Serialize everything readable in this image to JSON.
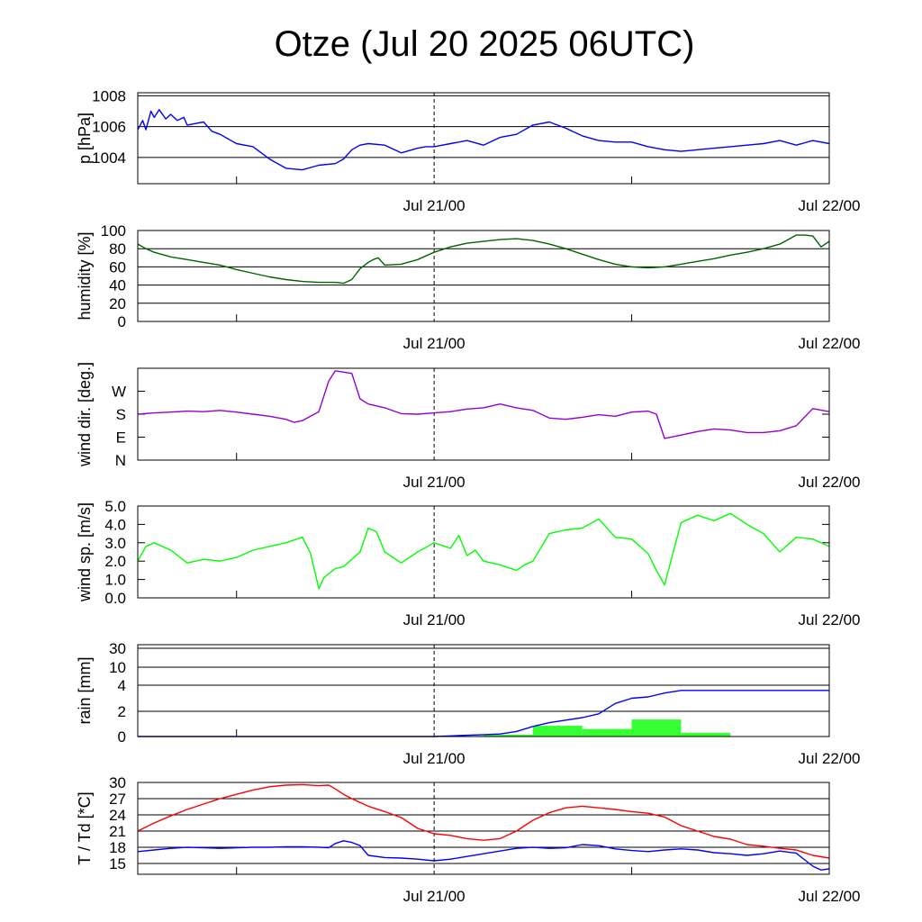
{
  "title": "Otze (Jul 20 2025 06UTC)",
  "colors": {
    "pressure": "#0000ff",
    "humidity": "#006400",
    "wind_dir": "#9400d3",
    "wind_speed": "#00ff00",
    "rain_bar": "#33ff33",
    "rain_cum": "#0000ff",
    "temperature": "#ff0000",
    "dewpoint": "#0000ff",
    "grid": "#000000"
  },
  "chart_data": [
    {
      "id": "pressure",
      "type": "line",
      "ylabel": "p [hPa]",
      "ylim": [
        1002.3,
        1008.2
      ],
      "yticks": [
        {
          "v": 1004,
          "label": "1004"
        },
        {
          "v": 1006,
          "label": "1006"
        },
        {
          "v": 1008,
          "label": "1008"
        }
      ],
      "grid": true,
      "xlim": [
        0,
        42
      ],
      "x_ticklabels": [
        {
          "x": 18,
          "label": "Jul 21/00"
        },
        {
          "x": 42,
          "label": "Jul 22/00"
        }
      ],
      "series": [
        {
          "color_key": "pressure",
          "x": [
            0,
            0.3,
            0.5,
            0.8,
            1,
            1.3,
            1.7,
            2,
            2.4,
            2.8,
            3,
            3.5,
            4,
            4.5,
            5,
            5.5,
            6,
            7,
            8,
            9,
            10,
            11,
            12,
            12.5,
            13,
            13.5,
            14,
            15,
            16,
            17,
            17.5,
            18,
            19,
            20,
            21,
            22,
            23,
            24,
            25,
            26,
            27,
            28,
            29,
            30,
            31,
            32,
            33,
            34,
            35,
            36,
            37,
            38,
            39,
            40,
            41,
            42
          ],
          "y": [
            1005.8,
            1006.4,
            1005.8,
            1007,
            1006.6,
            1007.1,
            1006.5,
            1006.8,
            1006.4,
            1006.6,
            1006.1,
            1006.2,
            1006.3,
            1005.7,
            1005.5,
            1005.2,
            1004.9,
            1004.7,
            1003.9,
            1003.3,
            1003.2,
            1003.5,
            1003.6,
            1003.9,
            1004.5,
            1004.8,
            1004.9,
            1004.8,
            1004.3,
            1004.6,
            1004.7,
            1004.7,
            1004.9,
            1005.1,
            1004.8,
            1005.3,
            1005.5,
            1006.1,
            1006.3,
            1005.9,
            1005.4,
            1005.1,
            1005,
            1005,
            1004.7,
            1004.5,
            1004.4,
            1004.5,
            1004.6,
            1004.7,
            1004.8,
            1004.9,
            1005.1,
            1004.8,
            1005.1,
            1004.9
          ]
        }
      ]
    },
    {
      "id": "humidity",
      "type": "line",
      "ylabel": "humidity [%]",
      "ylim": [
        0,
        100
      ],
      "yticks": [
        {
          "v": 0,
          "label": "0"
        },
        {
          "v": 20,
          "label": "20"
        },
        {
          "v": 40,
          "label": "40"
        },
        {
          "v": 60,
          "label": "60"
        },
        {
          "v": 80,
          "label": "80"
        },
        {
          "v": 100,
          "label": "100"
        }
      ],
      "grid": true,
      "xlim": [
        0,
        42
      ],
      "x_ticklabels": [
        {
          "x": 18,
          "label": "Jul 21/00"
        },
        {
          "x": 42,
          "label": "Jul 22/00"
        }
      ],
      "series": [
        {
          "color_key": "humidity",
          "x": [
            0,
            0.5,
            1,
            2,
            3,
            4,
            5,
            6,
            7,
            8,
            9,
            10,
            11,
            11.5,
            12,
            12.5,
            13,
            13.5,
            14,
            14.3,
            14.6,
            15,
            16,
            17,
            18,
            19,
            20,
            21,
            22,
            23,
            24,
            25,
            26,
            27,
            28,
            29,
            30,
            31,
            32,
            33,
            34,
            35,
            36,
            37,
            38,
            39,
            39.5,
            40,
            40.5,
            41,
            41.5,
            42
          ],
          "y": [
            85,
            80,
            76,
            71,
            68,
            65,
            62,
            57,
            53,
            49,
            46,
            44,
            43,
            43,
            43,
            42,
            46,
            58,
            65,
            68,
            70,
            62,
            63,
            68,
            76,
            82,
            86,
            88,
            90,
            91,
            89,
            85,
            80,
            74,
            68,
            63,
            60,
            59,
            60,
            63,
            66,
            69,
            73,
            76,
            80,
            85,
            90,
            95,
            95,
            94,
            82,
            88
          ]
        }
      ]
    },
    {
      "id": "wind_dir",
      "type": "line",
      "ylabel": "wind dir. [deg.]",
      "ylim": [
        0,
        360
      ],
      "yticks": [
        {
          "v": 0,
          "label": "N"
        },
        {
          "v": 90,
          "label": "E"
        },
        {
          "v": 180,
          "label": "S"
        },
        {
          "v": 270,
          "label": "W"
        }
      ],
      "grid": false,
      "xlim": [
        0,
        42
      ],
      "x_ticklabels": [
        {
          "x": 18,
          "label": "Jul 21/00"
        },
        {
          "x": 42,
          "label": "Jul 22/00"
        }
      ],
      "series": [
        {
          "color_key": "wind_dir",
          "x": [
            0,
            1,
            2,
            3,
            4,
            5,
            6,
            7,
            8,
            9,
            9.5,
            10,
            11,
            11.3,
            11.6,
            12,
            12.5,
            13,
            13.5,
            14,
            15,
            16,
            17,
            18,
            19,
            20,
            21,
            22,
            23,
            24,
            25,
            26,
            27,
            28,
            29,
            30,
            31,
            31.5,
            32,
            33,
            34,
            35,
            36,
            37,
            38,
            39,
            40,
            41,
            42
          ],
          "y": [
            180,
            185,
            188,
            192,
            190,
            195,
            188,
            180,
            172,
            160,
            148,
            155,
            190,
            250,
            310,
            350,
            345,
            340,
            240,
            220,
            205,
            182,
            180,
            185,
            190,
            200,
            205,
            220,
            205,
            195,
            165,
            160,
            168,
            178,
            172,
            188,
            192,
            180,
            85,
            98,
            112,
            122,
            118,
            108,
            108,
            115,
            135,
            202,
            190
          ]
        }
      ]
    },
    {
      "id": "wind_speed",
      "type": "line",
      "ylabel": "wind sp. [m/s]",
      "ylim": [
        0,
        5
      ],
      "yticks": [
        {
          "v": 0,
          "label": "0.0"
        },
        {
          "v": 1,
          "label": "1.0"
        },
        {
          "v": 2,
          "label": "2.0"
        },
        {
          "v": 3,
          "label": "3.0"
        },
        {
          "v": 4,
          "label": "4.0"
        },
        {
          "v": 5,
          "label": "5.0"
        }
      ],
      "grid": false,
      "xlim": [
        0,
        42
      ],
      "x_ticklabels": [
        {
          "x": 18,
          "label": "Jul 21/00"
        },
        {
          "x": 42,
          "label": "Jul 22/00"
        }
      ],
      "series": [
        {
          "color_key": "wind_speed",
          "x": [
            0,
            0.5,
            1,
            2,
            3,
            4,
            5,
            6,
            7,
            8,
            9,
            10,
            10.5,
            11,
            11.3,
            12,
            12.5,
            13,
            13.5,
            14,
            14.5,
            15,
            16,
            17,
            18,
            19,
            19.5,
            20,
            20.5,
            21,
            22,
            23,
            23.5,
            24,
            25,
            26,
            27,
            28,
            29,
            30,
            31,
            31.5,
            32,
            33,
            34,
            35,
            36,
            37,
            38,
            39,
            40,
            41,
            42
          ],
          "y": [
            2.0,
            2.8,
            3.0,
            2.6,
            1.9,
            2.1,
            2.0,
            2.2,
            2.6,
            2.8,
            3.0,
            3.3,
            2.4,
            0.5,
            1.1,
            1.6,
            1.7,
            2.1,
            2.5,
            3.8,
            3.6,
            2.5,
            1.9,
            2.5,
            3.0,
            2.7,
            3.4,
            2.3,
            2.6,
            2.0,
            1.8,
            1.5,
            1.8,
            2.0,
            3.5,
            3.7,
            3.8,
            4.3,
            3.3,
            3.2,
            2.4,
            1.5,
            0.7,
            4.1,
            4.5,
            4.2,
            4.6,
            4.0,
            3.5,
            2.5,
            3.3,
            3.2,
            2.8
          ]
        }
      ]
    },
    {
      "id": "rain",
      "type": "bar+line",
      "ylabel": "rain [mm]",
      "yscale": "custom",
      "yticks": [
        {
          "v": 0,
          "label": "0"
        },
        {
          "v": 2,
          "label": "2"
        },
        {
          "v": 4,
          "label": "4"
        },
        {
          "v": 10,
          "label": "10"
        },
        {
          "v": 30,
          "label": "30"
        }
      ],
      "grid": true,
      "xlim": [
        0,
        42
      ],
      "x_ticklabels": [
        {
          "x": 18,
          "label": "Jul 21/00"
        },
        {
          "x": 42,
          "label": "Jul 22/00"
        }
      ],
      "bars": {
        "color_key": "rain_bar",
        "width_hours": 3,
        "x_start": [
          18,
          21,
          24,
          27,
          30,
          33,
          36,
          39
        ],
        "values": [
          0.05,
          0.15,
          0.85,
          0.6,
          1.35,
          0.3,
          0,
          0
        ]
      },
      "series": [
        {
          "color_key": "rain_cum",
          "x": [
            0,
            18,
            19,
            20,
            21,
            22,
            23,
            24,
            25,
            26,
            27,
            28,
            29,
            30,
            31,
            32,
            33,
            42
          ],
          "y": [
            0,
            0,
            0.05,
            0.1,
            0.15,
            0.2,
            0.4,
            0.8,
            1.1,
            1.3,
            1.5,
            1.8,
            2.6,
            3.0,
            3.1,
            3.4,
            3.6,
            3.6
          ]
        }
      ]
    },
    {
      "id": "temperature",
      "type": "line",
      "ylabel": "T / Td [*C]",
      "ylim": [
        13,
        30
      ],
      "yticks": [
        {
          "v": 15,
          "label": "15"
        },
        {
          "v": 18,
          "label": "18"
        },
        {
          "v": 21,
          "label": "21"
        },
        {
          "v": 24,
          "label": "24"
        },
        {
          "v": 27,
          "label": "27"
        },
        {
          "v": 30,
          "label": "30"
        }
      ],
      "grid": true,
      "xlim": [
        0,
        42
      ],
      "x_ticklabels": [
        {
          "x": 18,
          "label": "Jul 21/00"
        },
        {
          "x": 42,
          "label": "Jul 22/00"
        }
      ],
      "series": [
        {
          "color_key": "temperature",
          "x": [
            0,
            1,
            2,
            3,
            4,
            5,
            6,
            7,
            8,
            9,
            10,
            11,
            11.6,
            12,
            12.5,
            13,
            14,
            15,
            16,
            17,
            18,
            19,
            20,
            21,
            22,
            23,
            24,
            25,
            26,
            27,
            28,
            29,
            30,
            31,
            32,
            33,
            34,
            35,
            36,
            37,
            38,
            39,
            40,
            41,
            42
          ],
          "y": [
            21,
            22.5,
            23.8,
            25,
            26,
            27,
            27.8,
            28.6,
            29.2,
            29.5,
            29.6,
            29.4,
            29.5,
            28.8,
            27.8,
            27,
            25.6,
            24.6,
            23.5,
            21.5,
            20.5,
            20.2,
            19.6,
            19.3,
            19.6,
            21,
            23,
            24.4,
            25.3,
            25.6,
            25.3,
            25.0,
            24.6,
            24.3,
            23.6,
            22,
            21,
            20,
            19.5,
            18.5,
            18.2,
            17.8,
            17.5,
            16.5,
            16
          ]
        },
        {
          "color_key": "dewpoint",
          "x": [
            0,
            1,
            2,
            3,
            4,
            5,
            6,
            7,
            8,
            9,
            10,
            11,
            11.6,
            12,
            12.5,
            13,
            13.5,
            14,
            15,
            16,
            17,
            18,
            19,
            20,
            21,
            22,
            23,
            24,
            25,
            26,
            27,
            28,
            29,
            30,
            31,
            32,
            33,
            34,
            35,
            36,
            37,
            38,
            39,
            40,
            41,
            41.5,
            42
          ],
          "y": [
            17.2,
            17.5,
            17.8,
            18,
            17.9,
            17.8,
            17.9,
            18,
            18,
            18.1,
            18.1,
            18,
            17.9,
            18.7,
            19.2,
            18.9,
            18.3,
            16.5,
            16.1,
            16,
            15.8,
            15.5,
            15.8,
            16.3,
            16.8,
            17.3,
            17.8,
            18,
            17.8,
            17.9,
            18.5,
            18.3,
            17.7,
            17.4,
            17.2,
            17.5,
            17.7,
            17.5,
            17.0,
            16.8,
            16.5,
            16.8,
            17.3,
            16.9,
            14.5,
            13.8,
            14.0
          ]
        }
      ]
    }
  ]
}
